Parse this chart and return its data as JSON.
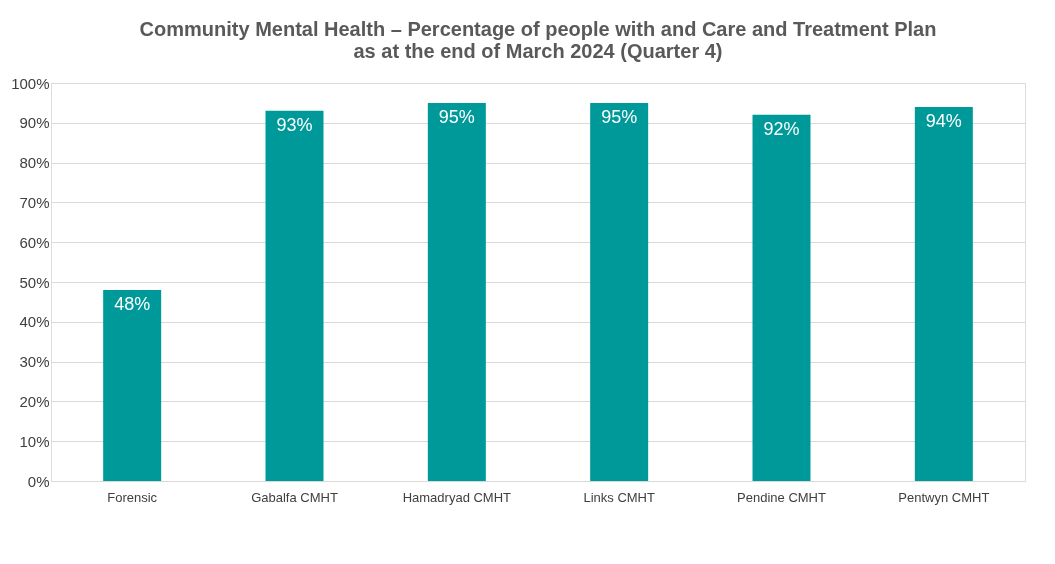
{
  "chart_data": {
    "type": "bar",
    "title": "Community Mental Health – Percentage of people with and Care and Treatment Plan as at the end of March 2024 (Quarter 4)",
    "categories": [
      "Forensic",
      "Gabalfa CMHT",
      "Hamadryad CMHT",
      "Links CMHT",
      "Pendine CMHT",
      "Pentwyn CMHT"
    ],
    "values": [
      48,
      93,
      95,
      95,
      92,
      94
    ],
    "value_labels": [
      "48%",
      "93%",
      "95%",
      "95%",
      "92%",
      "94%"
    ],
    "color": "#009999",
    "ylim": [
      0,
      100
    ],
    "yticks": [
      {
        "value": 0,
        "label": "0%"
      },
      {
        "value": 10,
        "label": "10%"
      },
      {
        "value": 20,
        "label": "20%"
      },
      {
        "value": 30,
        "label": "30%"
      },
      {
        "value": 40,
        "label": "40%"
      },
      {
        "value": 50,
        "label": "50%"
      },
      {
        "value": 60,
        "label": "60%"
      },
      {
        "value": 70,
        "label": "70%"
      },
      {
        "value": 80,
        "label": "80%"
      },
      {
        "value": 90,
        "label": "90%"
      },
      {
        "value": 100,
        "label": "100%"
      }
    ],
    "grid": "y"
  }
}
